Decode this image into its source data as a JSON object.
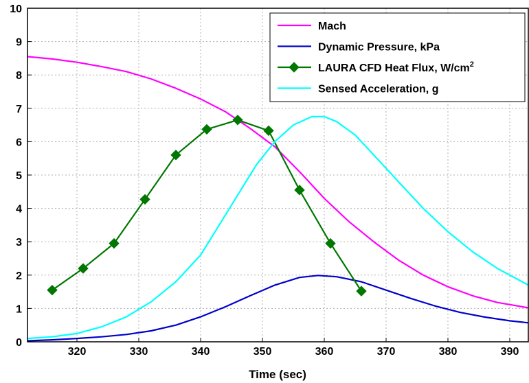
{
  "chart_data": {
    "type": "line",
    "title": "",
    "xlabel": "Time (sec)",
    "ylabel": "",
    "xlim": [
      312,
      393
    ],
    "ylim": [
      0,
      10
    ],
    "xticks": [
      320,
      330,
      340,
      350,
      360,
      370,
      380,
      390
    ],
    "yticks": [
      0,
      1,
      2,
      3,
      4,
      5,
      6,
      7,
      8,
      9,
      10
    ],
    "grid": true,
    "legend_position": "top-right",
    "series": [
      {
        "name": "Mach",
        "color": "#ff00ff",
        "marker": "none",
        "x": [
          312,
          316,
          320,
          324,
          328,
          332,
          336,
          340,
          344,
          348,
          352,
          356,
          360,
          364,
          368,
          372,
          376,
          380,
          384,
          388,
          393
        ],
        "y": [
          8.55,
          8.48,
          8.38,
          8.25,
          8.1,
          7.88,
          7.6,
          7.28,
          6.9,
          6.4,
          5.85,
          5.1,
          4.3,
          3.6,
          3.0,
          2.45,
          2.0,
          1.65,
          1.38,
          1.18,
          1.02
        ]
      },
      {
        "name": "Dynamic Pressure, kPa",
        "color": "#0000cc",
        "marker": "none",
        "x": [
          312,
          316,
          320,
          324,
          328,
          332,
          336,
          340,
          344,
          348,
          352,
          356,
          359,
          362,
          366,
          370,
          374,
          378,
          382,
          386,
          390,
          393
        ],
        "y": [
          0.03,
          0.06,
          0.1,
          0.15,
          0.22,
          0.33,
          0.5,
          0.75,
          1.05,
          1.38,
          1.7,
          1.93,
          1.99,
          1.95,
          1.8,
          1.55,
          1.3,
          1.07,
          0.88,
          0.74,
          0.63,
          0.57
        ]
      },
      {
        "name": "LAURA CFD Heat Flux, W/cm",
        "name_superscript": "2",
        "color": "#007700",
        "marker": "diamond",
        "x": [
          316,
          321,
          326,
          331,
          336,
          341,
          346,
          351,
          356,
          361,
          366
        ],
        "y": [
          1.55,
          2.2,
          2.95,
          4.27,
          5.6,
          6.37,
          6.65,
          6.33,
          4.55,
          2.95,
          1.52
        ]
      },
      {
        "name": "Sensed Acceleration, g",
        "color": "#00ffff",
        "marker": "none",
        "x": [
          312,
          316,
          320,
          324,
          328,
          332,
          336,
          340,
          343,
          346,
          349,
          352,
          355,
          358,
          360,
          362,
          365,
          368,
          372,
          376,
          380,
          384,
          388,
          393
        ],
        "y": [
          0.1,
          0.15,
          0.25,
          0.45,
          0.75,
          1.2,
          1.8,
          2.6,
          3.5,
          4.4,
          5.3,
          6.0,
          6.5,
          6.75,
          6.75,
          6.6,
          6.2,
          5.6,
          4.8,
          4.0,
          3.3,
          2.7,
          2.2,
          1.7
        ]
      }
    ]
  }
}
